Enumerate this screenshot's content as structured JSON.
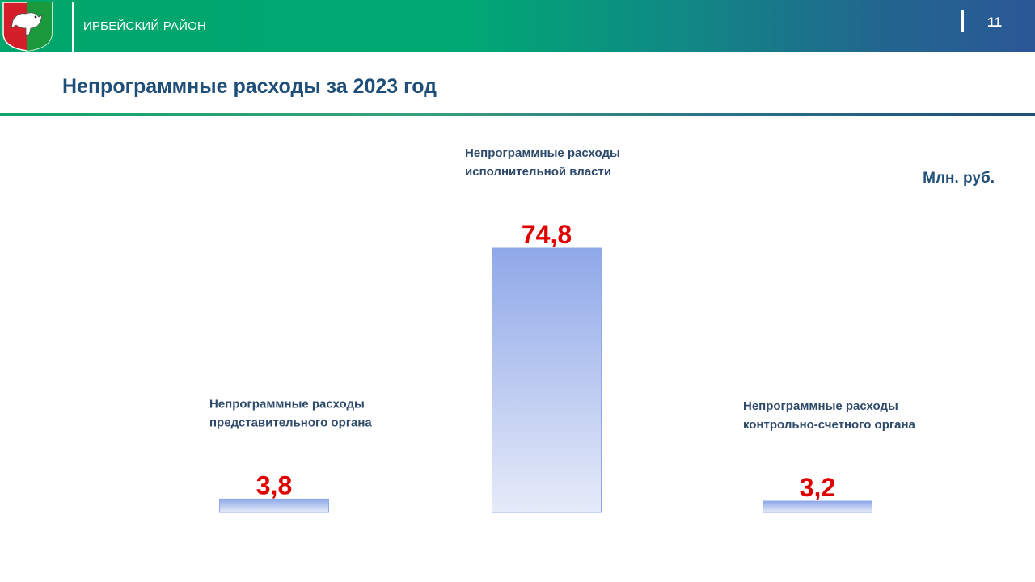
{
  "header": {
    "region": "ИРБЕЙСКИЙ РАЙОН",
    "page_number": "11",
    "emblem_icon": "coat-of-arms-icon",
    "colors": {
      "start": "#00a56b",
      "end": "#2b5796"
    }
  },
  "title": "Непрограммные расходы за 2023 год",
  "units": "Млн. руб.",
  "chart_data": {
    "type": "bar",
    "categories": [
      [
        "Непрограммные расходы",
        "представительного органа"
      ],
      [
        "Непрограммные расходы",
        "исполнительной власти"
      ],
      [
        "Непрограммные расходы",
        "контрольно-счетного органа"
      ]
    ],
    "values": [
      3.8,
      74.8,
      3.2
    ],
    "value_labels": [
      "3,8",
      "74,8",
      "3,2"
    ],
    "colors": {
      "bar_top": "#8fa8e8",
      "bar_bottom": "#e6ebf9",
      "value": "#e00000",
      "label": "#2e4a6b"
    }
  }
}
